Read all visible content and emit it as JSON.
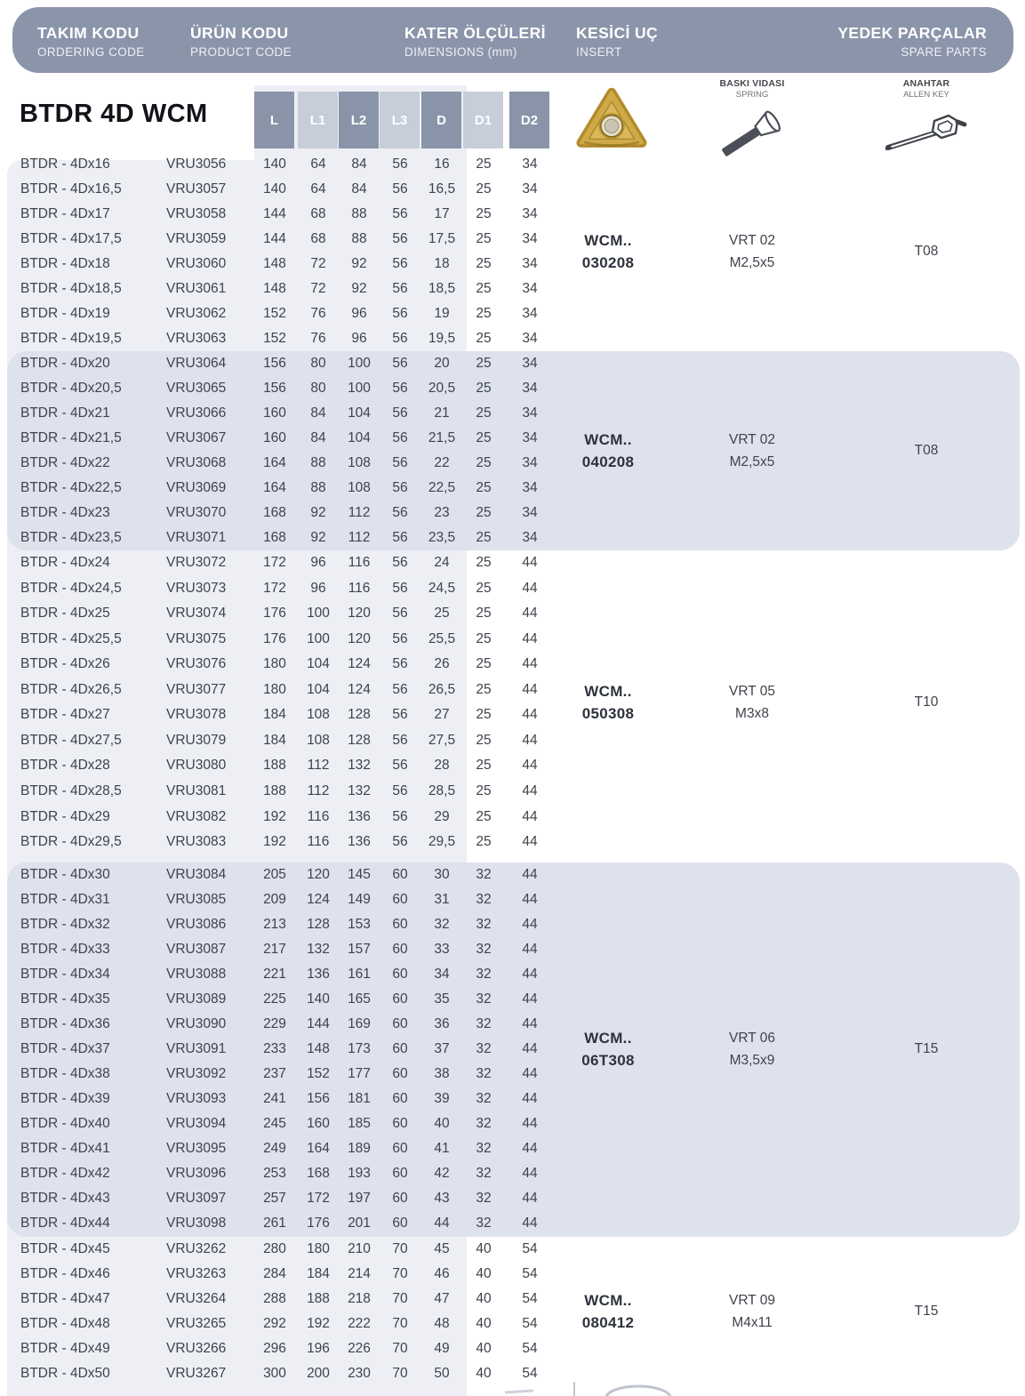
{
  "page": {
    "header_columns": [
      {
        "title": "TAKIM KODU",
        "subtitle": "ORDERING CODE"
      },
      {
        "title": "ÜRÜN KODU",
        "subtitle": "PRODUCT CODE"
      },
      {
        "title": "KATER ÖLÇÜLERİ",
        "subtitle": "DIMENSIONS (mm)"
      },
      {
        "title": "KESİCİ UÇ",
        "subtitle": "INSERT"
      },
      {
        "title": "YEDEK PARÇALAR",
        "subtitle": "SPARE PARTS"
      }
    ],
    "spare_part_labels": {
      "spring": {
        "title": "BASKI VIDASI",
        "subtitle": "SPRING"
      },
      "allen_key": {
        "title": "ANAHTAR",
        "subtitle": "ALLEN KEY"
      }
    },
    "product_title": "BTDR 4D WCM",
    "dimension_columns": [
      "L",
      "L1",
      "L2",
      "L3",
      "D",
      "D1",
      "D2"
    ]
  },
  "table": {
    "row_columns": [
      "ordering_code",
      "product_code",
      "L",
      "L1",
      "L2",
      "L3",
      "D",
      "D1",
      "D2"
    ],
    "groups": [
      {
        "shaded": false,
        "insert_code": {
          "line1": "WCM..",
          "line2": "030208"
        },
        "spring_screw": {
          "line1": "VRT 02",
          "line2": "M2,5x5"
        },
        "allen_key": "T08",
        "rows": [
          [
            "BTDR - 4Dx16",
            "VRU3056",
            "140",
            "64",
            "84",
            "56",
            "16",
            "25",
            "34"
          ],
          [
            "BTDR - 4Dx16,5",
            "VRU3057",
            "140",
            "64",
            "84",
            "56",
            "16,5",
            "25",
            "34"
          ],
          [
            "BTDR - 4Dx17",
            "VRU3058",
            "144",
            "68",
            "88",
            "56",
            "17",
            "25",
            "34"
          ],
          [
            "BTDR - 4Dx17,5",
            "VRU3059",
            "144",
            "68",
            "88",
            "56",
            "17,5",
            "25",
            "34"
          ],
          [
            "BTDR - 4Dx18",
            "VRU3060",
            "148",
            "72",
            "92",
            "56",
            "18",
            "25",
            "34"
          ],
          [
            "BTDR - 4Dx18,5",
            "VRU3061",
            "148",
            "72",
            "92",
            "56",
            "18,5",
            "25",
            "34"
          ],
          [
            "BTDR - 4Dx19",
            "VRU3062",
            "152",
            "76",
            "96",
            "56",
            "19",
            "25",
            "34"
          ],
          [
            "BTDR - 4Dx19,5",
            "VRU3063",
            "152",
            "76",
            "96",
            "56",
            "19,5",
            "25",
            "34"
          ]
        ]
      },
      {
        "shaded": true,
        "insert_code": {
          "line1": "WCM..",
          "line2": "040208"
        },
        "spring_screw": {
          "line1": "VRT 02",
          "line2": "M2,5x5"
        },
        "allen_key": "T08",
        "rows": [
          [
            "BTDR - 4Dx20",
            "VRU3064",
            "156",
            "80",
            "100",
            "56",
            "20",
            "25",
            "34"
          ],
          [
            "BTDR - 4Dx20,5",
            "VRU3065",
            "156",
            "80",
            "100",
            "56",
            "20,5",
            "25",
            "34"
          ],
          [
            "BTDR - 4Dx21",
            "VRU3066",
            "160",
            "84",
            "104",
            "56",
            "21",
            "25",
            "34"
          ],
          [
            "BTDR - 4Dx21,5",
            "VRU3067",
            "160",
            "84",
            "104",
            "56",
            "21,5",
            "25",
            "34"
          ],
          [
            "BTDR - 4Dx22",
            "VRU3068",
            "164",
            "88",
            "108",
            "56",
            "22",
            "25",
            "34"
          ],
          [
            "BTDR - 4Dx22,5",
            "VRU3069",
            "164",
            "88",
            "108",
            "56",
            "22,5",
            "25",
            "34"
          ],
          [
            "BTDR - 4Dx23",
            "VRU3070",
            "168",
            "92",
            "112",
            "56",
            "23",
            "25",
            "34"
          ],
          [
            "BTDR - 4Dx23,5",
            "VRU3071",
            "168",
            "92",
            "112",
            "56",
            "23,5",
            "25",
            "34"
          ]
        ]
      },
      {
        "shaded": false,
        "insert_code": {
          "line1": "WCM..",
          "line2": "050308"
        },
        "spring_screw": {
          "line1": "VRT 05",
          "line2": "M3x8"
        },
        "allen_key": "T10",
        "rows": [
          [
            "BTDR - 4Dx24",
            "VRU3072",
            "172",
            "96",
            "116",
            "56",
            "24",
            "25",
            "44"
          ],
          [
            "BTDR - 4Dx24,5",
            "VRU3073",
            "172",
            "96",
            "116",
            "56",
            "24,5",
            "25",
            "44"
          ],
          [
            "BTDR - 4Dx25",
            "VRU3074",
            "176",
            "100",
            "120",
            "56",
            "25",
            "25",
            "44"
          ],
          [
            "BTDR - 4Dx25,5",
            "VRU3075",
            "176",
            "100",
            "120",
            "56",
            "25,5",
            "25",
            "44"
          ],
          [
            "BTDR - 4Dx26",
            "VRU3076",
            "180",
            "104",
            "124",
            "56",
            "26",
            "25",
            "44"
          ],
          [
            "BTDR - 4Dx26,5",
            "VRU3077",
            "180",
            "104",
            "124",
            "56",
            "26,5",
            "25",
            "44"
          ],
          [
            "BTDR - 4Dx27",
            "VRU3078",
            "184",
            "108",
            "128",
            "56",
            "27",
            "25",
            "44"
          ],
          [
            "BTDR - 4Dx27,5",
            "VRU3079",
            "184",
            "108",
            "128",
            "56",
            "27,5",
            "25",
            "44"
          ],
          [
            "BTDR - 4Dx28",
            "VRU3080",
            "188",
            "112",
            "132",
            "56",
            "28",
            "25",
            "44"
          ],
          [
            "BTDR - 4Dx28,5",
            "VRU3081",
            "188",
            "112",
            "132",
            "56",
            "28,5",
            "25",
            "44"
          ],
          [
            "BTDR - 4Dx29",
            "VRU3082",
            "192",
            "116",
            "136",
            "56",
            "29",
            "25",
            "44"
          ],
          [
            "BTDR - 4Dx29,5",
            "VRU3083",
            "192",
            "116",
            "136",
            "56",
            "29,5",
            "25",
            "44"
          ]
        ]
      },
      {
        "shaded": true,
        "insert_code": {
          "line1": "WCM..",
          "line2": "06T308"
        },
        "spring_screw": {
          "line1": "VRT 06",
          "line2": "M3,5x9"
        },
        "allen_key": "T15",
        "rows": [
          [
            "BTDR - 4Dx30",
            "VRU3084",
            "205",
            "120",
            "145",
            "60",
            "30",
            "32",
            "44"
          ],
          [
            "BTDR - 4Dx31",
            "VRU3085",
            "209",
            "124",
            "149",
            "60",
            "31",
            "32",
            "44"
          ],
          [
            "BTDR - 4Dx32",
            "VRU3086",
            "213",
            "128",
            "153",
            "60",
            "32",
            "32",
            "44"
          ],
          [
            "BTDR - 4Dx33",
            "VRU3087",
            "217",
            "132",
            "157",
            "60",
            "33",
            "32",
            "44"
          ],
          [
            "BTDR - 4Dx34",
            "VRU3088",
            "221",
            "136",
            "161",
            "60",
            "34",
            "32",
            "44"
          ],
          [
            "BTDR - 4Dx35",
            "VRU3089",
            "225",
            "140",
            "165",
            "60",
            "35",
            "32",
            "44"
          ],
          [
            "BTDR - 4Dx36",
            "VRU3090",
            "229",
            "144",
            "169",
            "60",
            "36",
            "32",
            "44"
          ],
          [
            "BTDR - 4Dx37",
            "VRU3091",
            "233",
            "148",
            "173",
            "60",
            "37",
            "32",
            "44"
          ],
          [
            "BTDR - 4Dx38",
            "VRU3092",
            "237",
            "152",
            "177",
            "60",
            "38",
            "32",
            "44"
          ],
          [
            "BTDR - 4Dx39",
            "VRU3093",
            "241",
            "156",
            "181",
            "60",
            "39",
            "32",
            "44"
          ],
          [
            "BTDR - 4Dx40",
            "VRU3094",
            "245",
            "160",
            "185",
            "60",
            "40",
            "32",
            "44"
          ],
          [
            "BTDR - 4Dx41",
            "VRU3095",
            "249",
            "164",
            "189",
            "60",
            "41",
            "32",
            "44"
          ],
          [
            "BTDR - 4Dx42",
            "VRU3096",
            "253",
            "168",
            "193",
            "60",
            "42",
            "32",
            "44"
          ],
          [
            "BTDR - 4Dx43",
            "VRU3097",
            "257",
            "172",
            "197",
            "60",
            "43",
            "32",
            "44"
          ],
          [
            "BTDR - 4Dx44",
            "VRU3098",
            "261",
            "176",
            "201",
            "60",
            "44",
            "32",
            "44"
          ]
        ]
      },
      {
        "shaded": false,
        "insert_code": {
          "line1": "WCM..",
          "line2": "080412"
        },
        "spring_screw": {
          "line1": "VRT 09",
          "line2": "M4x11"
        },
        "allen_key": "T15",
        "rows": [
          [
            "BTDR - 4Dx45",
            "VRU3262",
            "280",
            "180",
            "210",
            "70",
            "45",
            "40",
            "54"
          ],
          [
            "BTDR - 4Dx46",
            "VRU3263",
            "284",
            "184",
            "214",
            "70",
            "46",
            "40",
            "54"
          ],
          [
            "BTDR - 4Dx47",
            "VRU3264",
            "288",
            "188",
            "218",
            "70",
            "47",
            "40",
            "54"
          ],
          [
            "BTDR - 4Dx48",
            "VRU3265",
            "292",
            "192",
            "222",
            "70",
            "48",
            "40",
            "54"
          ],
          [
            "BTDR - 4Dx49",
            "VRU3266",
            "296",
            "196",
            "226",
            "70",
            "49",
            "40",
            "54"
          ],
          [
            "BTDR - 4Dx50",
            "VRU3267",
            "300",
            "200",
            "230",
            "70",
            "50",
            "40",
            "54"
          ]
        ]
      }
    ]
  },
  "colors": {
    "header_bar": "#8b95aa",
    "dim_box_dark": "#8994a9",
    "dim_box_light": "#c7cdd9",
    "panel_light": "#edeff5",
    "band_shaded": "#dde2ed",
    "body_text": "#3e434c",
    "insert_gold": "#c9a540"
  }
}
